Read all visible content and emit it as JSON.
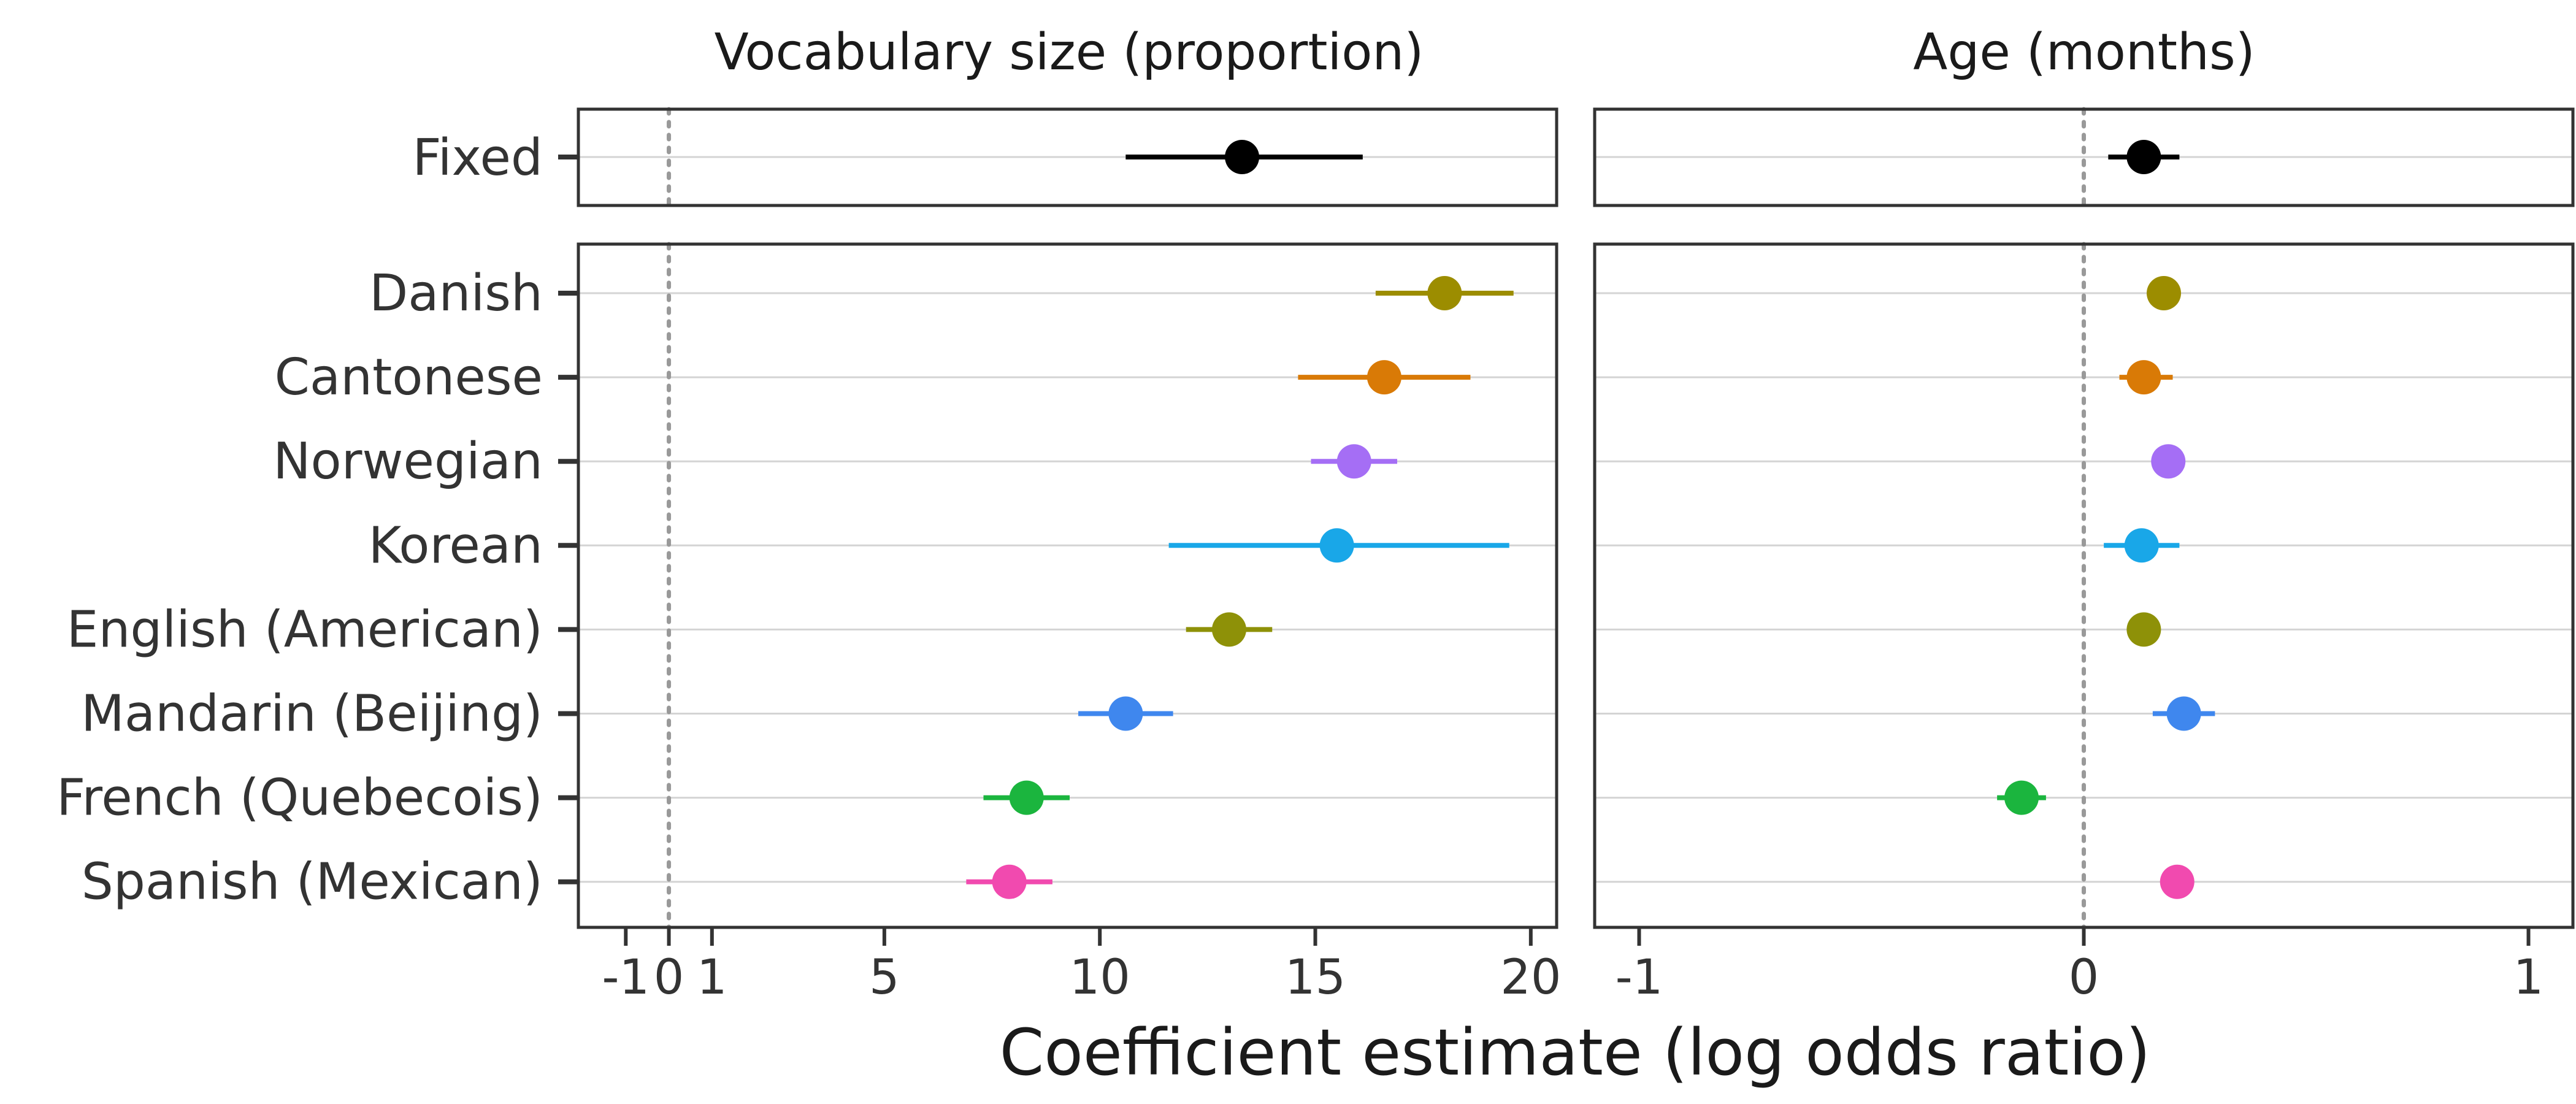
{
  "chart_data": {
    "type": "scatter",
    "xlabel": "Coefficient estimate (log odds ratio)",
    "fixed_label": "Fixed",
    "fixed_color": "#000000",
    "languages": [
      "Danish",
      "Cantonese",
      "Norwegian",
      "Korean",
      "English (American)",
      "Mandarin (Beijing)",
      "French (Quebecois)",
      "Spanish (Mexican)"
    ],
    "colors": [
      "#9C8D00",
      "#D97A06",
      "#A56EF5",
      "#19A7E8",
      "#8E9108",
      "#3F87EE",
      "#1BB53E",
      "#F14AAF"
    ],
    "panels": [
      {
        "title": "Vocabulary size (proportion)",
        "xlim": [
          -2.1,
          20.6
        ],
        "ticks": [
          -1,
          0,
          1,
          5,
          10,
          15,
          20
        ],
        "tick_labels": [
          "-1",
          "0",
          "1",
          "5",
          "10",
          "15",
          "20"
        ],
        "reference_x": 0,
        "fixed": {
          "estimate": 13.3,
          "lower": 10.6,
          "upper": 16.1
        },
        "estimates": [
          18.0,
          16.6,
          15.9,
          15.5,
          13.0,
          10.6,
          8.3,
          7.9
        ],
        "lower": [
          16.4,
          14.6,
          14.9,
          11.6,
          12.0,
          9.5,
          7.3,
          6.9
        ],
        "upper": [
          19.6,
          18.6,
          16.9,
          19.5,
          14.0,
          11.7,
          9.3,
          8.9
        ]
      },
      {
        "title": "Age (months)",
        "xlim": [
          -1.1,
          1.1
        ],
        "ticks": [
          -1,
          0,
          1
        ],
        "tick_labels": [
          "-1",
          "0",
          "1"
        ],
        "reference_x": 0,
        "fixed": {
          "estimate": 0.135,
          "lower": 0.055,
          "upper": 0.215
        },
        "estimates": [
          0.18,
          0.135,
          0.19,
          0.13,
          0.135,
          0.225,
          -0.14,
          0.21
        ],
        "lower": [
          0.155,
          0.08,
          0.165,
          0.045,
          0.11,
          0.155,
          -0.195,
          0.18
        ],
        "upper": [
          0.205,
          0.2,
          0.215,
          0.215,
          0.16,
          0.295,
          -0.085,
          0.24
        ]
      }
    ]
  }
}
